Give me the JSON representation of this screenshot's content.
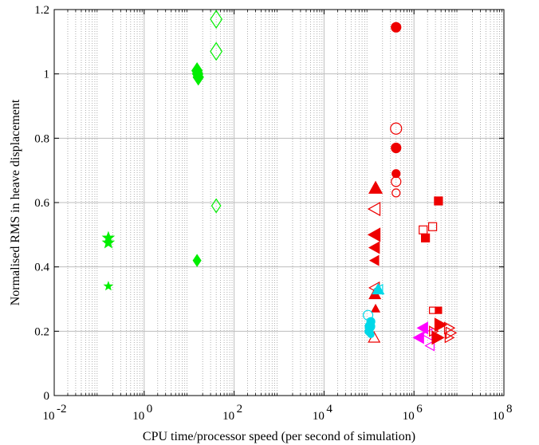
{
  "chart_data": {
    "type": "scatter",
    "title": "",
    "xlabel": "CPU time/processor speed (per second of simulation)",
    "ylabel": "Normalised RMS in heave displacement",
    "xscale": "log",
    "xlim": [
      0.01,
      100000000
    ],
    "ylim": [
      0,
      1.2
    ],
    "grid": true,
    "legend": "none",
    "x_ticks": [
      {
        "value": 0.01,
        "base": "10",
        "exp": "-2"
      },
      {
        "value": 1,
        "base": "10",
        "exp": "0"
      },
      {
        "value": 100,
        "base": "10",
        "exp": "2"
      },
      {
        "value": 10000,
        "base": "10",
        "exp": "4"
      },
      {
        "value": 1000000,
        "base": "10",
        "exp": "6"
      },
      {
        "value": 100000000,
        "base": "10",
        "exp": "8"
      }
    ],
    "y_ticks": [
      {
        "value": 0,
        "label": "0"
      },
      {
        "value": 0.2,
        "label": "0.2"
      },
      {
        "value": 0.4,
        "label": "0.4"
      },
      {
        "value": 0.6,
        "label": "0.6"
      },
      {
        "value": 0.8,
        "label": "0.8"
      },
      {
        "value": 1.0,
        "label": "1"
      },
      {
        "value": 1.2,
        "label": "1.2"
      }
    ],
    "colors": {
      "green": "#00ee00",
      "red": "#ee0000",
      "cyan": "#00d8e8",
      "magenta": "#ff00ff"
    },
    "points": [
      {
        "x": 0.16,
        "y": 0.49,
        "marker": "star",
        "color": "green",
        "filled": true,
        "size": 7
      },
      {
        "x": 0.16,
        "y": 0.475,
        "marker": "star",
        "color": "green",
        "filled": true,
        "size": 7
      },
      {
        "x": 0.16,
        "y": 0.34,
        "marker": "star",
        "color": "green",
        "filled": true,
        "size": 5
      },
      {
        "x": 15,
        "y": 1.01,
        "marker": "diamond",
        "color": "green",
        "filled": true,
        "size": 8
      },
      {
        "x": 15.5,
        "y": 1.0,
        "marker": "diamond",
        "color": "green",
        "filled": true,
        "size": 8
      },
      {
        "x": 16,
        "y": 0.99,
        "marker": "diamond",
        "color": "green",
        "filled": true,
        "size": 8
      },
      {
        "x": 15,
        "y": 0.42,
        "marker": "diamond",
        "color": "green",
        "filled": true,
        "size": 6
      },
      {
        "x": 40,
        "y": 1.17,
        "marker": "diamond",
        "color": "green",
        "filled": false,
        "size": 9
      },
      {
        "x": 40,
        "y": 1.07,
        "marker": "diamond",
        "color": "green",
        "filled": false,
        "size": 9
      },
      {
        "x": 40,
        "y": 0.59,
        "marker": "diamond",
        "color": "green",
        "filled": false,
        "size": 7
      },
      {
        "x": 400000,
        "y": 1.145,
        "marker": "circle",
        "color": "red",
        "filled": true,
        "size": 6
      },
      {
        "x": 400000,
        "y": 0.83,
        "marker": "circle",
        "color": "red",
        "filled": false,
        "size": 7
      },
      {
        "x": 400000,
        "y": 0.77,
        "marker": "circle",
        "color": "red",
        "filled": true,
        "size": 6
      },
      {
        "x": 400000,
        "y": 0.69,
        "marker": "circle",
        "color": "red",
        "filled": true,
        "size": 5
      },
      {
        "x": 400000,
        "y": 0.665,
        "marker": "circle",
        "color": "red",
        "filled": false,
        "size": 6
      },
      {
        "x": 400000,
        "y": 0.63,
        "marker": "circle",
        "color": "red",
        "filled": false,
        "size": 5
      },
      {
        "x": 140000,
        "y": 0.645,
        "marker": "triangle-up",
        "color": "red",
        "filled": true,
        "size": 8
      },
      {
        "x": 135000,
        "y": 0.58,
        "marker": "triangle-left",
        "color": "red",
        "filled": false,
        "size": 8
      },
      {
        "x": 135000,
        "y": 0.5,
        "marker": "triangle-left",
        "color": "red",
        "filled": true,
        "size": 8
      },
      {
        "x": 135000,
        "y": 0.46,
        "marker": "triangle-left",
        "color": "red",
        "filled": true,
        "size": 7
      },
      {
        "x": 135000,
        "y": 0.42,
        "marker": "triangle-left",
        "color": "red",
        "filled": true,
        "size": 6
      },
      {
        "x": 135000,
        "y": 0.335,
        "marker": "triangle-left",
        "color": "red",
        "filled": false,
        "size": 7
      },
      {
        "x": 135000,
        "y": 0.315,
        "marker": "triangle-up",
        "color": "red",
        "filled": true,
        "size": 7
      },
      {
        "x": 140000,
        "y": 0.27,
        "marker": "triangle-up",
        "color": "red",
        "filled": true,
        "size": 5
      },
      {
        "x": 130000,
        "y": 0.18,
        "marker": "triangle-up",
        "color": "red",
        "filled": false,
        "size": 7
      },
      {
        "x": 160000,
        "y": 0.33,
        "marker": "triangle-up",
        "color": "cyan",
        "filled": true,
        "size": 7
      },
      {
        "x": 165000,
        "y": 0.33,
        "marker": "triangle-left",
        "color": "cyan",
        "filled": false,
        "size": 6
      },
      {
        "x": 95000,
        "y": 0.25,
        "marker": "circle",
        "color": "cyan",
        "filled": false,
        "size": 6
      },
      {
        "x": 110000,
        "y": 0.23,
        "marker": "circle",
        "color": "cyan",
        "filled": true,
        "size": 5
      },
      {
        "x": 105000,
        "y": 0.215,
        "marker": "circle",
        "color": "cyan",
        "filled": true,
        "size": 6
      },
      {
        "x": 100000,
        "y": 0.2,
        "marker": "circle",
        "color": "cyan",
        "filled": true,
        "size": 5
      },
      {
        "x": 110000,
        "y": 0.19,
        "marker": "circle",
        "color": "cyan",
        "filled": true,
        "size": 4
      },
      {
        "x": 3500000,
        "y": 0.605,
        "marker": "square",
        "color": "red",
        "filled": true,
        "size": 5
      },
      {
        "x": 2600000,
        "y": 0.525,
        "marker": "square",
        "color": "red",
        "filled": false,
        "size": 5
      },
      {
        "x": 1600000,
        "y": 0.515,
        "marker": "square",
        "color": "red",
        "filled": false,
        "size": 5
      },
      {
        "x": 1800000,
        "y": 0.49,
        "marker": "square",
        "color": "red",
        "filled": true,
        "size": 5
      },
      {
        "x": 2600000,
        "y": 0.265,
        "marker": "square",
        "color": "red",
        "filled": false,
        "size": 4
      },
      {
        "x": 3500000,
        "y": 0.265,
        "marker": "square",
        "color": "red",
        "filled": true,
        "size": 4
      },
      {
        "x": 1600000,
        "y": 0.21,
        "marker": "triangle-left",
        "color": "magenta",
        "filled": true,
        "size": 7
      },
      {
        "x": 1300000,
        "y": 0.18,
        "marker": "triangle-left",
        "color": "magenta",
        "filled": true,
        "size": 7
      },
      {
        "x": 2000000,
        "y": 0.19,
        "marker": "triangle-left",
        "color": "magenta",
        "filled": false,
        "size": 7
      },
      {
        "x": 2300000,
        "y": 0.155,
        "marker": "triangle-left",
        "color": "magenta",
        "filled": false,
        "size": 6
      },
      {
        "x": 3800000,
        "y": 0.22,
        "marker": "triangle-right",
        "color": "red",
        "filled": true,
        "size": 8
      },
      {
        "x": 3300000,
        "y": 0.18,
        "marker": "triangle-right",
        "color": "red",
        "filled": true,
        "size": 8
      },
      {
        "x": 2700000,
        "y": 0.2,
        "marker": "triangle-right",
        "color": "red",
        "filled": false,
        "size": 6
      },
      {
        "x": 6000000,
        "y": 0.21,
        "marker": "triangle-right",
        "color": "red",
        "filled": false,
        "size": 7
      },
      {
        "x": 6500000,
        "y": 0.195,
        "marker": "triangle-right",
        "color": "red",
        "filled": false,
        "size": 7
      },
      {
        "x": 6000000,
        "y": 0.18,
        "marker": "triangle-right",
        "color": "red",
        "filled": false,
        "size": 6
      }
    ]
  }
}
